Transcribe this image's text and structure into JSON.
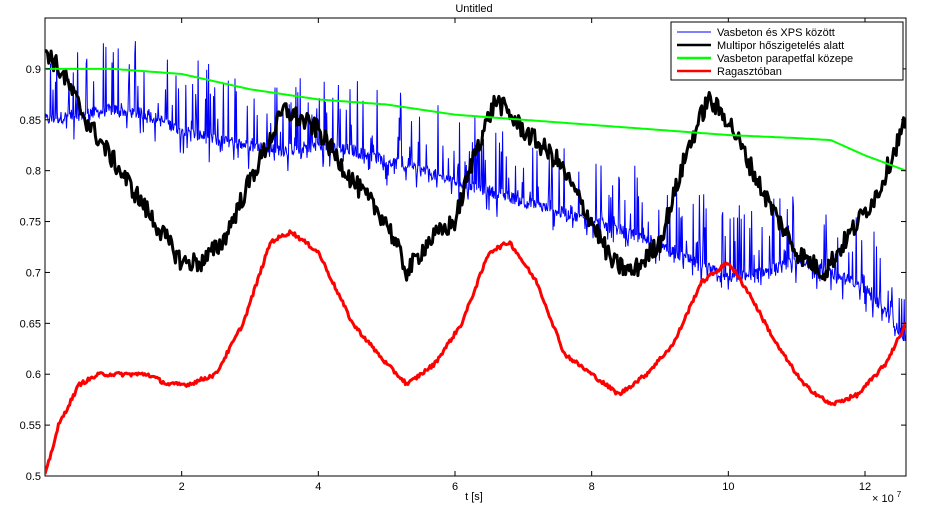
{
  "chart_data": {
    "type": "line",
    "title": "Untitled",
    "xlabel": "t [s]",
    "ylabel": "",
    "x_exponent_label": "× 10",
    "x_exponent_power": "7",
    "xlim": [
      0,
      126000000.0
    ],
    "ylim": [
      0.5,
      0.95
    ],
    "xticks": [
      20000000.0,
      40000000.0,
      60000000.0,
      80000000.0,
      100000000.0,
      120000000.0
    ],
    "xtick_labels": [
      "2",
      "4",
      "6",
      "8",
      "10",
      "12"
    ],
    "yticks": [
      0.5,
      0.55,
      0.6,
      0.65,
      0.7,
      0.75,
      0.8,
      0.85,
      0.9
    ],
    "ytick_labels": [
      "0.5",
      "0.55",
      "0.6",
      "0.65",
      "0.7",
      "0.75",
      "0.8",
      "0.85",
      "0.9"
    ],
    "grid": false,
    "legend_position": "top-right",
    "series": [
      {
        "name": "Vasbeton és XPS között",
        "color": "#0000ff",
        "noisy": true,
        "x": [
          0,
          5000000.0,
          10000000.0,
          15000000.0,
          20000000.0,
          25000000.0,
          30000000.0,
          35000000.0,
          40000000.0,
          45000000.0,
          50000000.0,
          55000000.0,
          60000000.0,
          65000000.0,
          70000000.0,
          75000000.0,
          80000000.0,
          85000000.0,
          90000000.0,
          95000000.0,
          100000000.0,
          105000000.0,
          110000000.0,
          115000000.0,
          120000000.0,
          126000000.0
        ],
        "y": [
          0.85,
          0.855,
          0.86,
          0.855,
          0.84,
          0.83,
          0.825,
          0.82,
          0.825,
          0.82,
          0.81,
          0.8,
          0.79,
          0.78,
          0.77,
          0.76,
          0.75,
          0.74,
          0.725,
          0.71,
          0.695,
          0.7,
          0.71,
          0.7,
          0.685,
          0.635
        ]
      },
      {
        "name": "Multipor hőszigetelés alatt",
        "color": "#000000",
        "x": [
          0,
          3000000.0,
          6000000.0,
          9000000.0,
          12000000.0,
          15000000.0,
          18000000.0,
          20000000.0,
          23000000.0,
          26000000.0,
          30000000.0,
          35000000.0,
          40000000.0,
          45000000.0,
          50000000.0,
          53000000.0,
          56000000.0,
          60000000.0,
          63000000.0,
          66000000.0,
          70000000.0,
          75000000.0,
          80000000.0,
          83000000.0,
          86000000.0,
          90000000.0,
          94000000.0,
          97000000.0,
          100000000.0,
          105000000.0,
          110000000.0,
          114000000.0,
          118000000.0,
          122000000.0,
          126000000.0
        ],
        "y": [
          0.92,
          0.89,
          0.85,
          0.82,
          0.79,
          0.76,
          0.73,
          0.71,
          0.71,
          0.73,
          0.79,
          0.86,
          0.84,
          0.79,
          0.75,
          0.7,
          0.73,
          0.75,
          0.82,
          0.87,
          0.84,
          0.81,
          0.75,
          0.71,
          0.7,
          0.73,
          0.82,
          0.87,
          0.85,
          0.78,
          0.72,
          0.7,
          0.74,
          0.78,
          0.85
        ]
      },
      {
        "name": "Vasbeton parapetfal közepe",
        "color": "#00ff00",
        "x": [
          0,
          10000000.0,
          20000000.0,
          30000000.0,
          40000000.0,
          50000000.0,
          60000000.0,
          70000000.0,
          80000000.0,
          90000000.0,
          100000000.0,
          110000000.0,
          115000000.0,
          120000000.0,
          126000000.0
        ],
        "y": [
          0.9,
          0.9,
          0.895,
          0.88,
          0.87,
          0.865,
          0.855,
          0.85,
          0.845,
          0.84,
          0.835,
          0.832,
          0.83,
          0.815,
          0.8
        ]
      },
      {
        "name": "Ragasztóban",
        "color": "#ff0000",
        "x": [
          0,
          2000000.0,
          5000000.0,
          8000000.0,
          11000000.0,
          15000000.0,
          18000000.0,
          21000000.0,
          25000000.0,
          29000000.0,
          33000000.0,
          36000000.0,
          40000000.0,
          45000000.0,
          50000000.0,
          53000000.0,
          57000000.0,
          61000000.0,
          65000000.0,
          68000000.0,
          72000000.0,
          76000000.0,
          80000000.0,
          84000000.0,
          88000000.0,
          92000000.0,
          96000000.0,
          100000000.0,
          103000000.0,
          107000000.0,
          111000000.0,
          115000000.0,
          119000000.0,
          123000000.0,
          126000000.0
        ],
        "y": [
          0.5,
          0.55,
          0.59,
          0.6,
          0.6,
          0.6,
          0.59,
          0.59,
          0.6,
          0.65,
          0.73,
          0.74,
          0.72,
          0.65,
          0.61,
          0.59,
          0.61,
          0.65,
          0.72,
          0.73,
          0.69,
          0.62,
          0.6,
          0.58,
          0.6,
          0.63,
          0.69,
          0.71,
          0.68,
          0.63,
          0.59,
          0.57,
          0.58,
          0.61,
          0.65
        ]
      }
    ]
  }
}
